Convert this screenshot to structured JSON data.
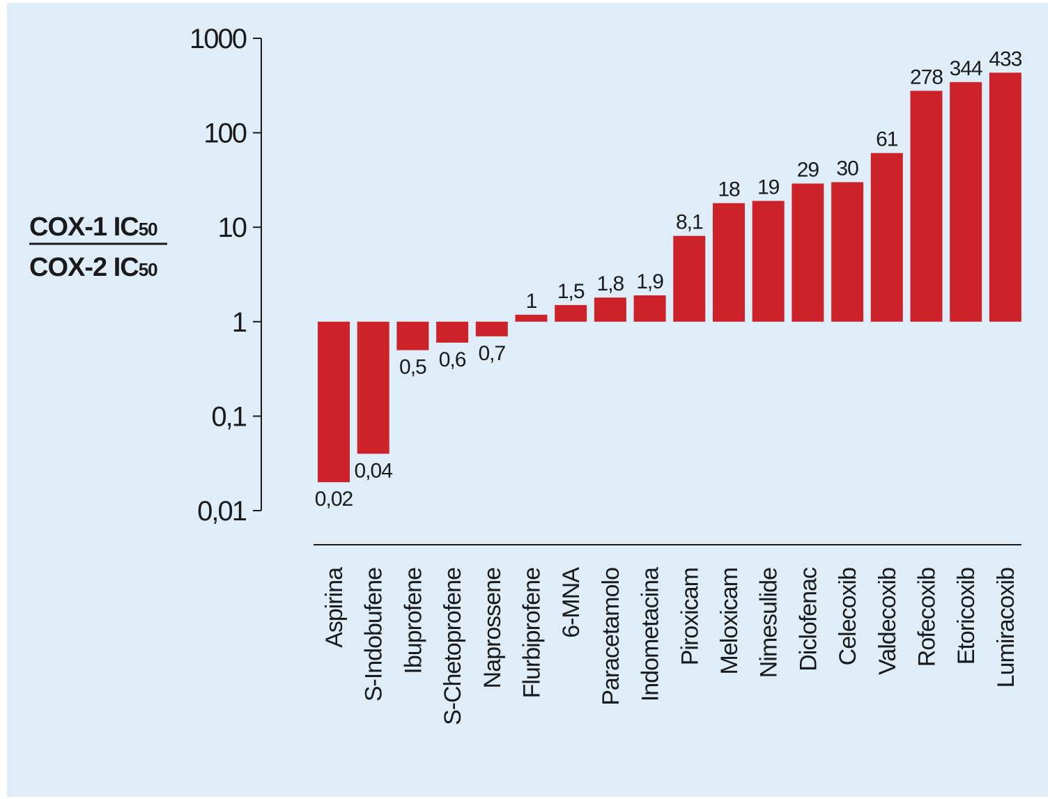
{
  "chart_data": {
    "type": "bar",
    "scale": "log",
    "ylim": [
      0.01,
      1000
    ],
    "baseline": 1,
    "grid": false,
    "ylabel": {
      "numerator": "COX-1 IC",
      "numerator_sub": "50",
      "denominator": "COX-2 IC",
      "denominator_sub": "50"
    },
    "yticks": [
      {
        "value": 1000,
        "label": "1000"
      },
      {
        "value": 100,
        "label": "100"
      },
      {
        "value": 10,
        "label": "10"
      },
      {
        "value": 1,
        "label": "1"
      },
      {
        "value": 0.1,
        "label": "0,1"
      },
      {
        "value": 0.01,
        "label": "0,01"
      }
    ],
    "categories": [
      "Aspirina",
      "S-Indobufene",
      "Ibuprofene",
      "S-Chetoprofene",
      "Naprossene",
      "Flurbiprofene",
      "6-MNA",
      "Paracetamolo",
      "Indometacina",
      "Piroxicam",
      "Meloxicam",
      "Nimesulide",
      "Diclofenac",
      "Celecoxib",
      "Valdecoxib",
      "Rofecoxib",
      "Etoricoxib",
      "Lumiracoxib"
    ],
    "values": [
      0.02,
      0.04,
      0.5,
      0.6,
      0.7,
      1,
      1.5,
      1.8,
      1.9,
      8.1,
      18,
      19,
      29,
      30,
      61,
      278,
      344,
      433
    ],
    "value_labels": [
      "0,02",
      "0,04",
      "0,5",
      "0,6",
      "0,7",
      "1",
      "1,5",
      "1,8",
      "1,9",
      "8,1",
      "18",
      "19",
      "29",
      "30",
      "61",
      "278",
      "344",
      "433"
    ],
    "colors": {
      "bar": "#cc2229",
      "background": "#deedf8",
      "text": "#1a1a1a"
    }
  }
}
